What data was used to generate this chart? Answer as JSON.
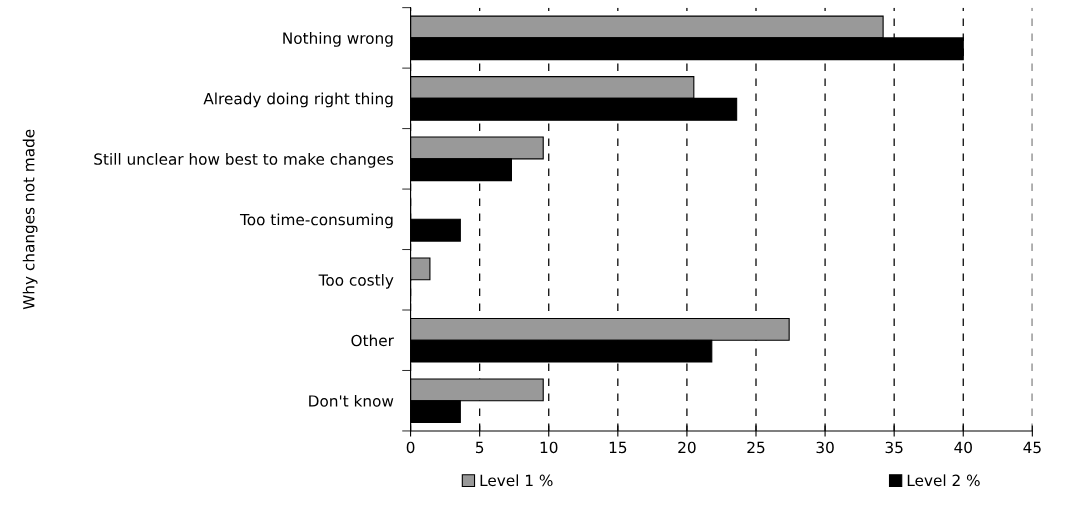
{
  "chart_data": {
    "type": "bar",
    "orientation": "horizontal",
    "ylabel": "Why changes not made",
    "categories": [
      "Nothing wrong",
      "Already doing right thing",
      "Still unclear how best to make changes",
      "Too time-consuming",
      "Too costly",
      "Other",
      "Don't know"
    ],
    "series": [
      {
        "name": "Level 1 %",
        "color": "#999999",
        "values": [
          34.2,
          20.5,
          9.6,
          0,
          1.4,
          27.4,
          9.6
        ]
      },
      {
        "name": "Level 2 %",
        "color": "#000000",
        "values": [
          40.0,
          23.6,
          7.3,
          3.6,
          0,
          21.8,
          3.6
        ]
      }
    ],
    "xlim": [
      0,
      45
    ],
    "xticks": [
      0,
      5,
      10,
      15,
      20,
      25,
      30,
      35,
      40,
      45
    ],
    "grid": "x",
    "legend": "bottom"
  }
}
